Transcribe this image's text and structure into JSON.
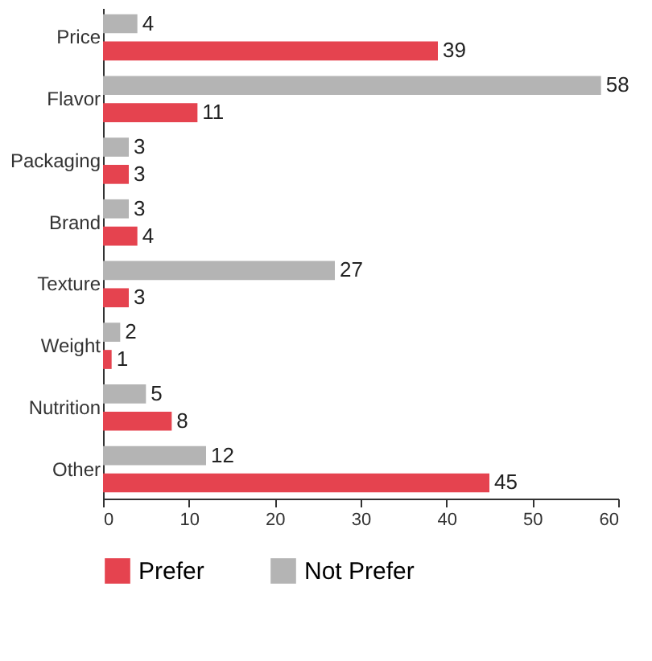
{
  "chart_data": {
    "type": "bar",
    "orientation": "horizontal",
    "categories": [
      "Price",
      "Flavor",
      "Packaging",
      "Brand",
      "Texture",
      "Weight",
      "Nutrition",
      "Other"
    ],
    "series": [
      {
        "name": "Prefer",
        "color": "#e5434f",
        "values": [
          39,
          11,
          3,
          4,
          3,
          1,
          8,
          45
        ]
      },
      {
        "name": "Not Prefer",
        "color": "#b4b4b4",
        "values": [
          4,
          58,
          3,
          3,
          27,
          2,
          5,
          12
        ]
      }
    ],
    "xlim": [
      0,
      60
    ],
    "xticks": [
      0,
      10,
      20,
      30,
      40,
      50,
      60
    ],
    "grid": false,
    "legend": "bottom",
    "data_labels": true
  }
}
